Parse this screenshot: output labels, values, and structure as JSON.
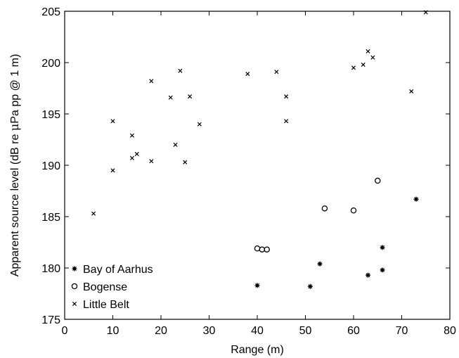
{
  "chart_data": {
    "type": "scatter",
    "xlabel": "Range (m)",
    "ylabel_parts": [
      "Apparent source level (dB re ",
      "μ",
      "Pa pp @ 1 m)"
    ],
    "xlim": [
      0,
      80
    ],
    "ylim": [
      175,
      205
    ],
    "xticks": [
      0,
      10,
      20,
      30,
      40,
      50,
      60,
      70,
      80
    ],
    "yticks": [
      175,
      180,
      185,
      190,
      195,
      200,
      205
    ],
    "xtick_labels": [
      "0",
      "10",
      "20",
      "30",
      "40",
      "50",
      "60",
      "70",
      "80"
    ],
    "ytick_labels": [
      "175",
      "180",
      "185",
      "190",
      "195",
      "200",
      "205"
    ],
    "grid": false,
    "legend_position": "lower-left",
    "series": [
      {
        "name": "Bay of Aarhus",
        "marker": "star",
        "color": "#000000",
        "points": [
          [
            40,
            178.3
          ],
          [
            51,
            178.2
          ],
          [
            53,
            180.4
          ],
          [
            63,
            179.3
          ],
          [
            66,
            179.8
          ],
          [
            66,
            182.0
          ],
          [
            73,
            186.7
          ]
        ]
      },
      {
        "name": "Bogense",
        "marker": "circle",
        "color": "#000000",
        "points": [
          [
            40,
            181.9
          ],
          [
            41,
            181.8
          ],
          [
            42,
            181.8
          ],
          [
            54,
            185.8
          ],
          [
            60,
            185.6
          ],
          [
            65,
            188.5
          ]
        ]
      },
      {
        "name": "Little Belt",
        "marker": "x",
        "color": "#000000",
        "points": [
          [
            6,
            185.3
          ],
          [
            10,
            194.3
          ],
          [
            10,
            189.5
          ],
          [
            14,
            192.9
          ],
          [
            14,
            190.7
          ],
          [
            15,
            191.1
          ],
          [
            18,
            198.2
          ],
          [
            18,
            190.4
          ],
          [
            22,
            196.6
          ],
          [
            23,
            192.0
          ],
          [
            24,
            199.2
          ],
          [
            25,
            190.3
          ],
          [
            26,
            196.7
          ],
          [
            28,
            194.0
          ],
          [
            38,
            198.9
          ],
          [
            44,
            199.1
          ],
          [
            46,
            196.7
          ],
          [
            46,
            194.3
          ],
          [
            60,
            199.5
          ],
          [
            62,
            199.8
          ],
          [
            63,
            201.1
          ],
          [
            64,
            200.5
          ],
          [
            72,
            197.2
          ],
          [
            75,
            204.9
          ]
        ]
      }
    ]
  }
}
